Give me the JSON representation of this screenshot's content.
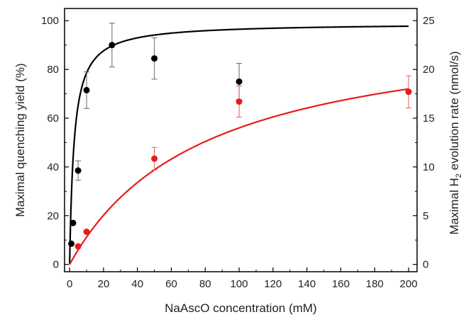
{
  "chart_data": {
    "type": "scatter",
    "xlabel": "NaAscO concentration (mM)",
    "ylabel_left": "Maximal quenching yield (%)",
    "ylabel_right_parts": [
      "Maximal H",
      "2",
      " evolution rate (nmol/s)"
    ],
    "xlim": [
      -3,
      205
    ],
    "ylim_left": [
      -3,
      105
    ],
    "ylim_right": [
      -0.75,
      26.25
    ],
    "x_ticks": [
      0,
      20,
      40,
      60,
      80,
      100,
      120,
      140,
      160,
      180,
      200
    ],
    "y_left_ticks": [
      0,
      20,
      40,
      60,
      80,
      100
    ],
    "y_right_ticks": [
      0,
      5,
      10,
      15,
      20,
      25
    ],
    "grid": false,
    "series": [
      {
        "axis": "left",
        "color": "#000000",
        "points": [
          {
            "x": 1,
            "y": 8.5,
            "err": 0
          },
          {
            "x": 2,
            "y": 17,
            "err": 0
          },
          {
            "x": 5,
            "y": 38.5,
            "err": 4
          },
          {
            "x": 10,
            "y": 71.5,
            "err": 7.5
          },
          {
            "x": 25,
            "y": 90,
            "err": 9
          },
          {
            "x": 50,
            "y": 84.5,
            "err": 8.5
          },
          {
            "x": 100,
            "y": 75,
            "err": 7.5
          }
        ],
        "fit": {
          "model": "hyperbolic",
          "vmax": 99,
          "k": 2.6
        }
      },
      {
        "axis": "right",
        "color": "#e81b1b",
        "points": [
          {
            "x": 5,
            "y": 1.85,
            "err": 0
          },
          {
            "x": 10,
            "y": 3.35,
            "err": 0
          },
          {
            "x": 50,
            "y": 10.85,
            "err": 1.15
          },
          {
            "x": 100,
            "y": 16.7,
            "err": 1.6
          },
          {
            "x": 200,
            "y": 17.7,
            "err": 1.65
          }
        ],
        "fit": {
          "model": "hyperbolic",
          "vmax": 25.2,
          "k": 80
        }
      }
    ]
  }
}
